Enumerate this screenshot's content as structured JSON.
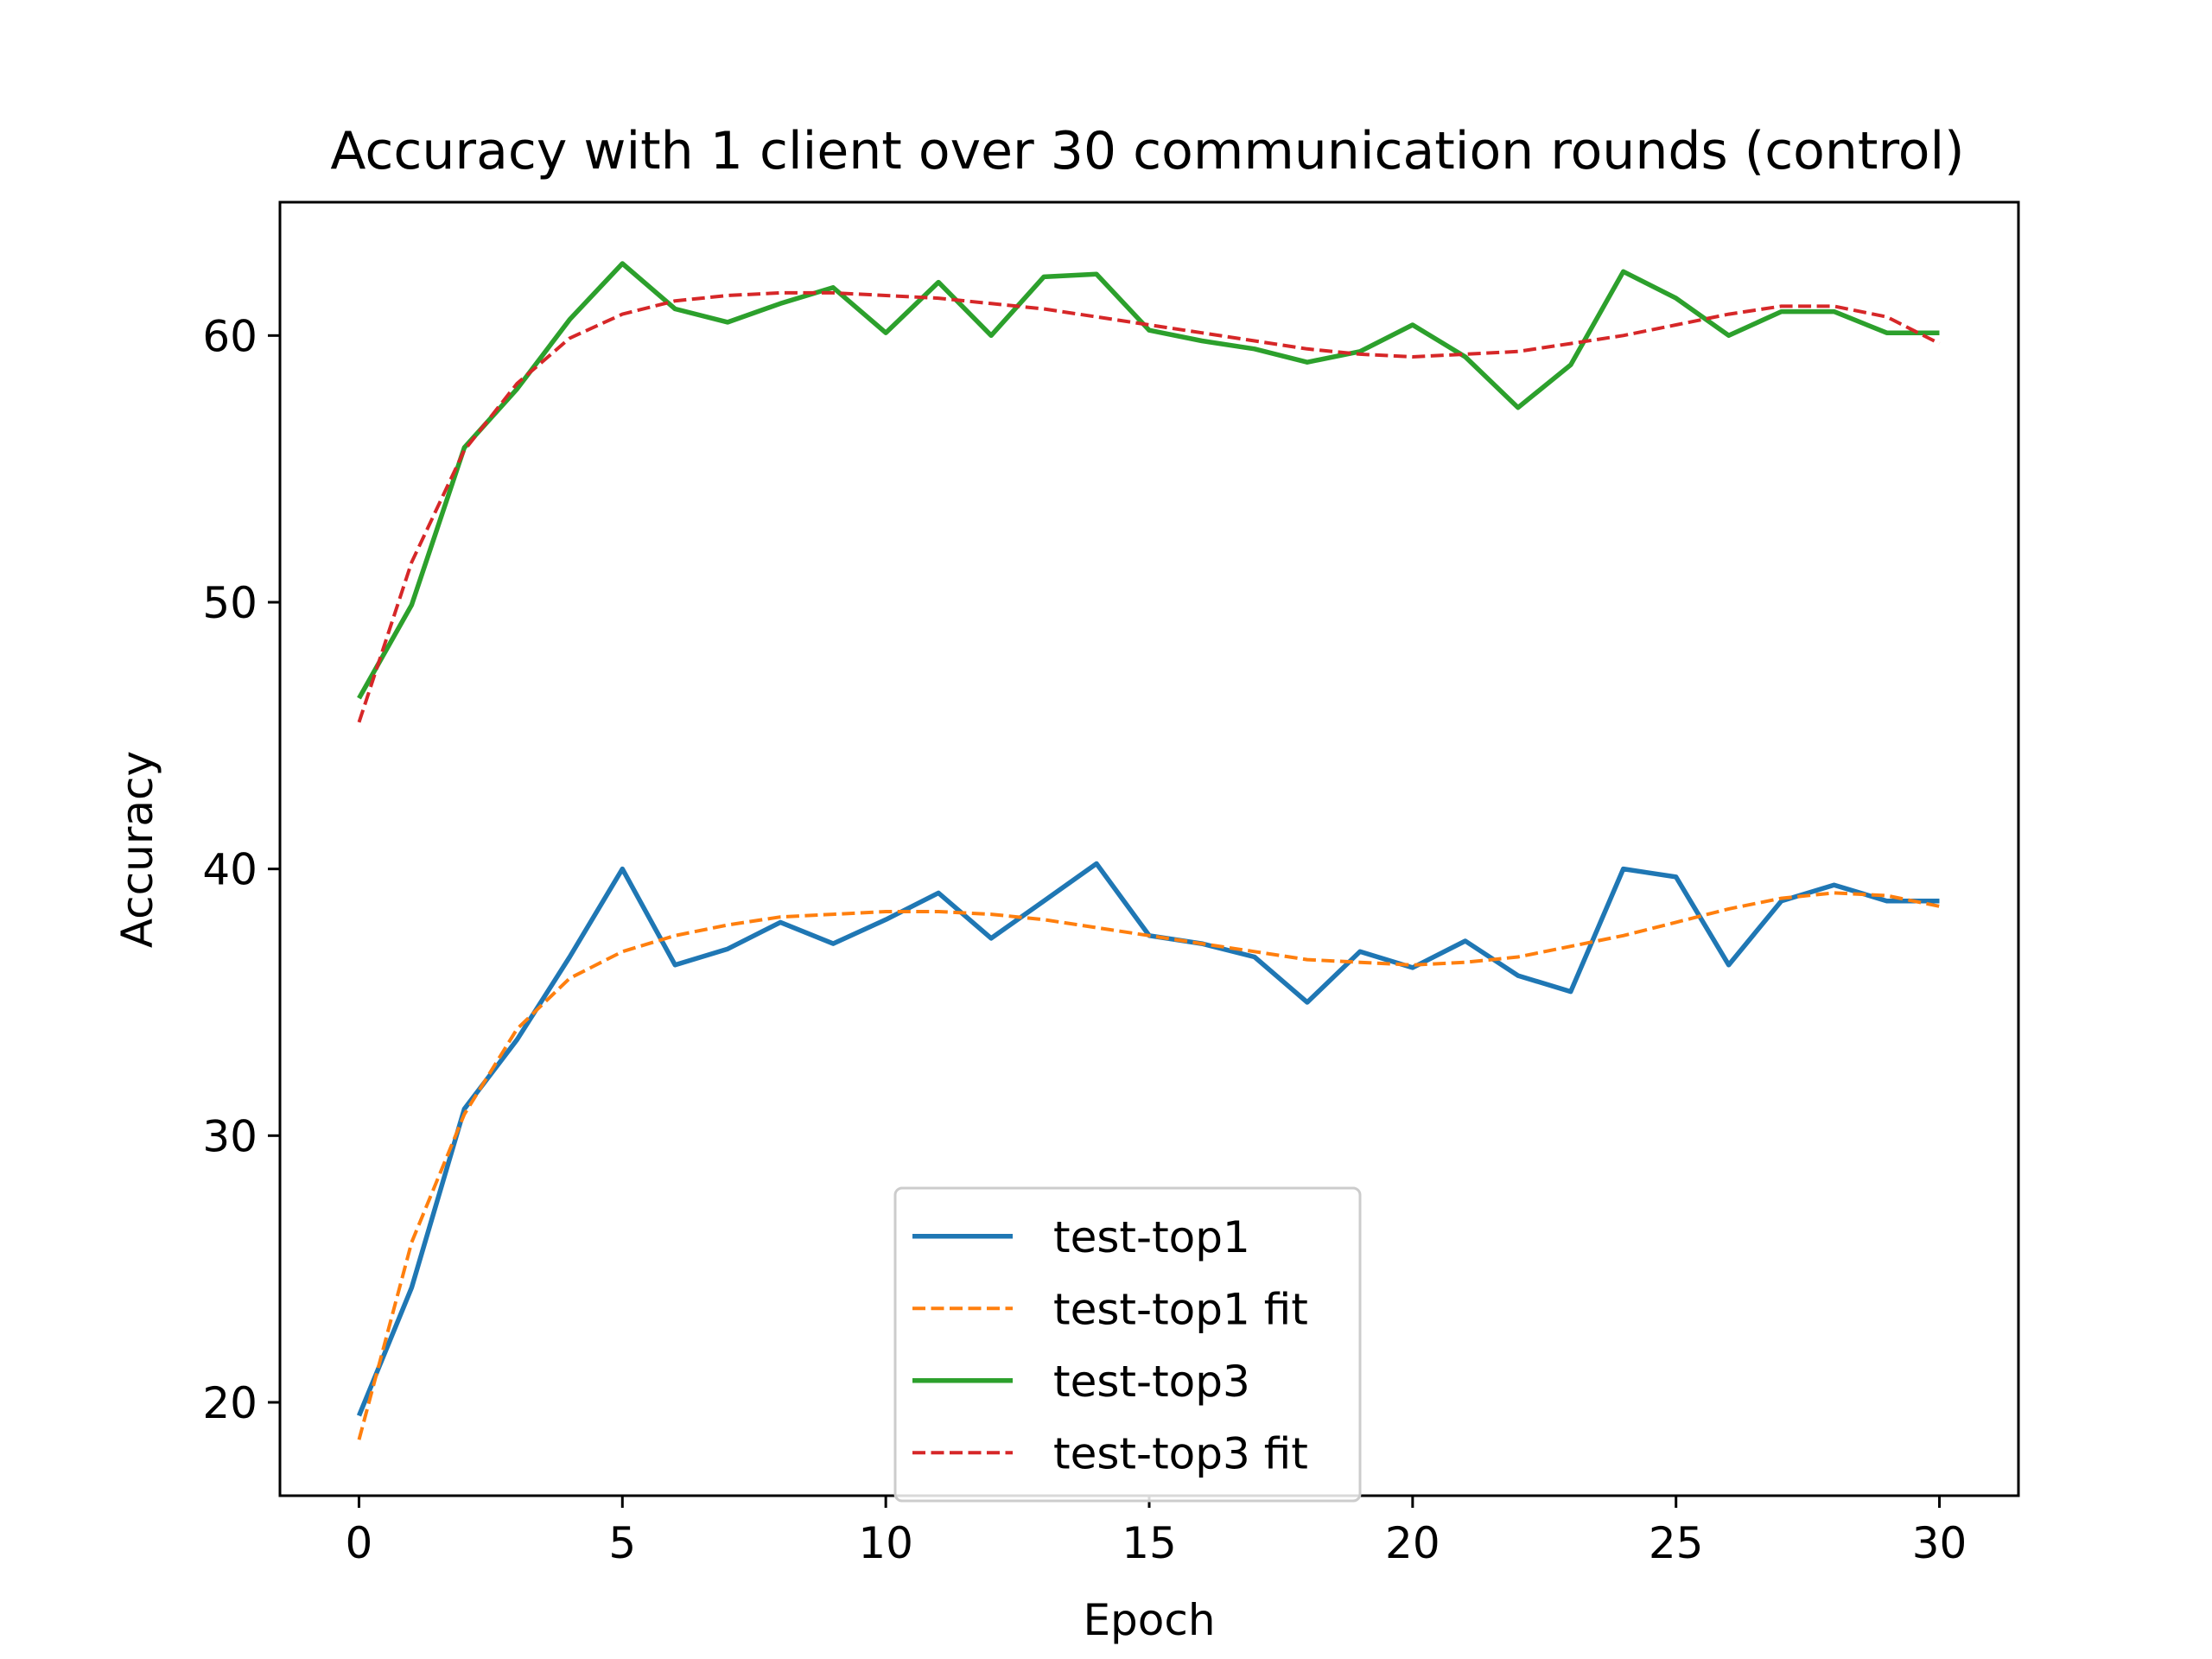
{
  "chart_data": {
    "type": "line",
    "title": "Accuracy with 1 client over 30 communication rounds (control)",
    "xlabel": "Epoch",
    "ylabel": "Accuracy",
    "xlim": [
      -1.5,
      31.5
    ],
    "ylim": [
      16.5,
      65
    ],
    "xticks": [
      0,
      5,
      10,
      15,
      20,
      25,
      30
    ],
    "yticks": [
      20,
      30,
      40,
      50,
      60
    ],
    "grid": false,
    "legend_position": "lower center",
    "x": [
      0,
      1,
      2,
      3,
      4,
      5,
      6,
      7,
      8,
      9,
      10,
      11,
      12,
      13,
      14,
      15,
      16,
      17,
      18,
      19,
      20,
      21,
      22,
      23,
      24,
      25,
      26,
      27,
      28,
      29,
      30
    ],
    "series": [
      {
        "name": "test-top1",
        "color": "#1f77b4",
        "style": "solid",
        "values": [
          19.5,
          24.3,
          31.0,
          33.6,
          36.7,
          40.0,
          36.4,
          37.0,
          38.0,
          37.2,
          38.1,
          39.1,
          37.4,
          38.8,
          40.2,
          37.5,
          37.2,
          36.7,
          35.0,
          36.9,
          36.3,
          37.3,
          36.0,
          35.4,
          40.0,
          39.7,
          36.4,
          38.8,
          39.4,
          38.8,
          38.8
        ]
      },
      {
        "name": "test-top1 fit",
        "color": "#ff7f0e",
        "style": "dashed",
        "values": [
          18.6,
          26.0,
          30.8,
          34.0,
          35.9,
          36.9,
          37.5,
          37.9,
          38.2,
          38.3,
          38.4,
          38.4,
          38.3,
          38.1,
          37.8,
          37.5,
          37.2,
          36.9,
          36.6,
          36.5,
          36.4,
          36.5,
          36.7,
          37.1,
          37.5,
          38.0,
          38.5,
          38.9,
          39.1,
          39.0,
          38.6
        ]
      },
      {
        "name": "test-top3",
        "color": "#2ca02c",
        "style": "solid",
        "values": [
          46.4,
          49.9,
          55.8,
          58.0,
          60.6,
          62.7,
          61.0,
          60.5,
          61.2,
          61.8,
          60.1,
          62.0,
          60.0,
          62.2,
          62.3,
          60.2,
          59.8,
          59.5,
          59.0,
          59.4,
          60.4,
          59.2,
          57.3,
          58.9,
          62.4,
          61.4,
          60.0,
          60.9,
          60.9,
          60.1,
          60.1
        ]
      },
      {
        "name": "test-top3 fit",
        "color": "#d62728",
        "style": "dashed",
        "values": [
          45.5,
          51.5,
          55.7,
          58.2,
          59.9,
          60.8,
          61.3,
          61.5,
          61.6,
          61.6,
          61.5,
          61.4,
          61.2,
          61.0,
          60.7,
          60.4,
          60.1,
          59.8,
          59.5,
          59.3,
          59.2,
          59.3,
          59.4,
          59.7,
          60.0,
          60.4,
          60.8,
          61.1,
          61.1,
          60.7,
          59.7
        ]
      }
    ]
  }
}
